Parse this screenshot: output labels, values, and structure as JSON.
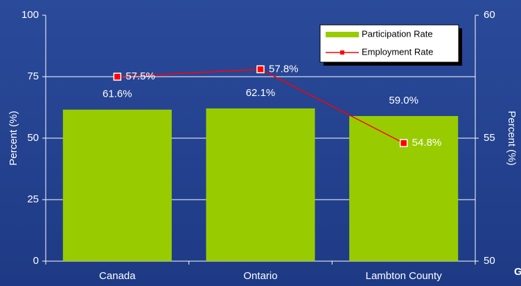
{
  "chart_data": {
    "type": "bar_line",
    "categories": [
      "Canada",
      "Ontario",
      "Lambton County"
    ],
    "series": [
      {
        "name": "Participation Rate",
        "type": "bar",
        "color": "#99cc00",
        "values": [
          61.6,
          62.1,
          59.0
        ],
        "value_labels": [
          "61.6%",
          "62.1%",
          "59.0%"
        ]
      },
      {
        "name": "Employment Rate",
        "type": "line",
        "axis": "y2",
        "color": "#ff0000",
        "values": [
          57.5,
          57.8,
          54.8
        ],
        "value_labels": [
          "57.5%",
          "57.8%",
          "54.8%"
        ]
      }
    ],
    "ylabel": "Percent (%)",
    "y2label": "Percent (%)",
    "ylim": [
      0,
      100
    ],
    "yticks": [
      0,
      25,
      50,
      75,
      100
    ],
    "y2lim": [
      50,
      60
    ],
    "y2ticks": [
      50,
      55,
      60
    ],
    "grid": true,
    "legend": "upper right",
    "annotation": "G"
  }
}
